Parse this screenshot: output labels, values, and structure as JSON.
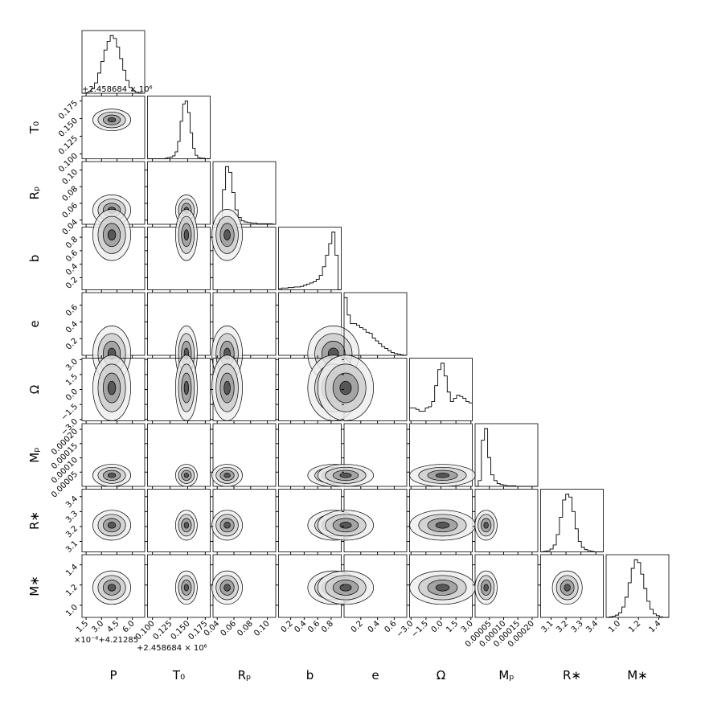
{
  "chart_data": {
    "type": "corner",
    "parameters": [
      {
        "name": "P",
        "lim": [
          1.1,
          7.2
        ],
        "ticks": [
          1.5,
          {
            "value": 3,
            "label": "3.0"
          },
          4.5,
          {
            "value": 6,
            "label": "6.0"
          }
        ],
        "hist": [
          0,
          1,
          3,
          8,
          18,
          35,
          55,
          75,
          90,
          100,
          95,
          80,
          60,
          40,
          22,
          10,
          4,
          2,
          1,
          0
        ]
      },
      {
        "name": "T₀",
        "lim": [
          0.093,
          0.182
        ],
        "ticks": [
          {
            "value": 0.1,
            "label": "0.100"
          },
          0.125,
          {
            "value": 0.15,
            "label": "0.150"
          },
          0.175
        ],
        "hist": [
          0,
          0,
          0,
          0,
          0,
          0,
          0,
          1,
          2,
          3,
          5,
          12,
          30,
          65,
          95,
          100,
          80,
          45,
          18,
          6,
          2,
          1,
          1,
          0,
          0
        ]
      },
      {
        "name": "Rₚ",
        "lim": [
          0.035,
          0.11
        ],
        "ticks": [
          0.04,
          0.06,
          0.08,
          {
            "value": 0.1,
            "label": "0.10"
          }
        ],
        "hist": [
          0,
          1,
          10,
          60,
          100,
          90,
          55,
          25,
          12,
          6,
          4,
          3,
          2,
          2,
          1,
          1,
          1,
          1,
          1,
          0
        ]
      },
      {
        "name": "b",
        "lim": [
          0.02,
          0.95
        ],
        "ticks": [
          0.2,
          0.4,
          0.6,
          0.8
        ],
        "hist": [
          2,
          3,
          3,
          4,
          4,
          5,
          5,
          6,
          8,
          10,
          12,
          14,
          18,
          25,
          40,
          60,
          80,
          100,
          60,
          0
        ]
      },
      {
        "name": "e",
        "lim": [
          0,
          0.75
        ],
        "ticks": [
          0.2,
          0.4,
          0.6
        ],
        "hist": [
          100,
          70,
          55,
          55,
          52,
          48,
          45,
          40,
          38,
          30,
          25,
          20,
          15,
          12,
          8,
          5,
          3,
          2,
          1,
          0
        ]
      },
      {
        "name": "Ω",
        "lim": [
          -3.14,
          3.14
        ],
        "ticks": [
          {
            "value": -3,
            "label": "−3.0"
          },
          {
            "value": -1.5,
            "label": "−1.5"
          },
          {
            "value": 0,
            "label": "0.0"
          },
          1.5,
          {
            "value": 3,
            "label": "3.0"
          }
        ],
        "hist": [
          20,
          20,
          18,
          15,
          15,
          20,
          22,
          30,
          55,
          80,
          90,
          70,
          45,
          30,
          35,
          40,
          38,
          35,
          30,
          28
        ]
      },
      {
        "name": "Mₚ",
        "lim": [
          0,
          0.00022
        ],
        "ticks": [
          {
            "value": 5e-05,
            "label": "0.00005"
          },
          {
            "value": 0.0001,
            "label": "0.00010"
          },
          {
            "value": 0.00015,
            "label": "0.00015"
          },
          {
            "value": 0.0002,
            "label": "0.00020"
          }
        ],
        "hist": [
          0,
          10,
          80,
          100,
          50,
          20,
          10,
          5,
          3,
          2,
          1,
          1,
          1,
          0,
          0,
          0,
          0,
          0,
          0,
          0
        ]
      },
      {
        "name": "R∗",
        "lim": [
          3.03,
          3.45
        ],
        "ticks": [
          3.1,
          3.2,
          3.3,
          3.4
        ],
        "hist": [
          0,
          1,
          2,
          5,
          12,
          30,
          60,
          90,
          100,
          95,
          70,
          40,
          18,
          8,
          4,
          2,
          1,
          0,
          0,
          0
        ]
      },
      {
        "name": "M∗",
        "lim": [
          0.88,
          1.5
        ],
        "ticks": [
          {
            "value": 1,
            "label": "1.0"
          },
          1.2,
          1.4
        ],
        "hist": [
          0,
          1,
          2,
          4,
          8,
          18,
          35,
          60,
          85,
          100,
          95,
          75,
          50,
          28,
          14,
          6,
          3,
          1,
          0,
          0
        ]
      }
    ],
    "offset_T0": "+2.458684 × 10⁶",
    "offset_P": "×10⁻⁶+4.21285"
  }
}
